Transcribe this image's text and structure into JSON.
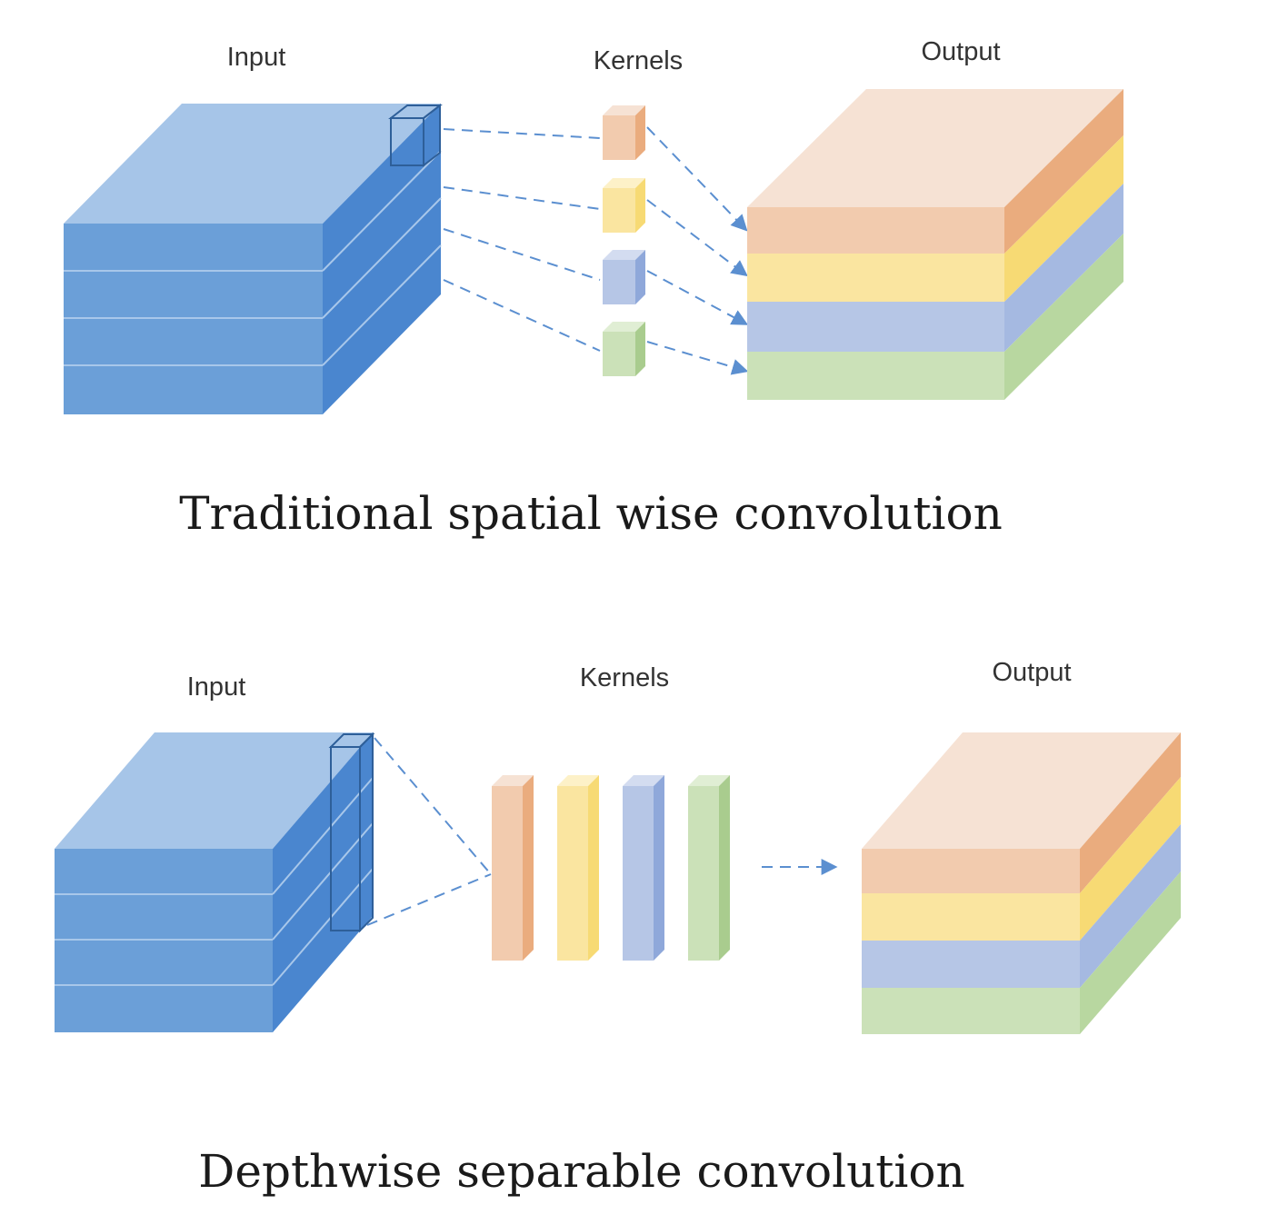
{
  "traditional": {
    "input_label": "Input",
    "kernels_label": "Kernels",
    "output_label": "Output",
    "caption": "Traditional spatial wise convolution"
  },
  "depthwise": {
    "input_label": "Input",
    "kernels_label": "Kernels",
    "output_label": "Output",
    "caption": "Depthwise separable convolution"
  },
  "colors": {
    "input_top": "#a6c5e8",
    "input_front": "#6b9fd8",
    "input_side": "#4a86cf",
    "orange_front": "#f2cbae",
    "orange_top": "#f6e2d4",
    "orange_side": "#eaac7e",
    "yellow_front": "#fae5a0",
    "yellow_side": "#f7da74",
    "blue_front": "#b6c6e6",
    "blue_side": "#a5b9e1",
    "green_front": "#cbe1b8",
    "green_side": "#b8d7a0",
    "arrow": "#5b8fd0"
  }
}
